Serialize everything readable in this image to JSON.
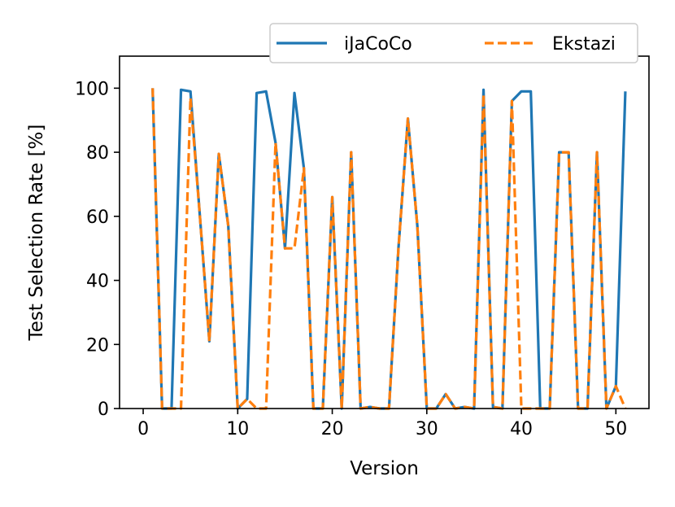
{
  "chart_data": {
    "type": "line",
    "xlabel": "Version",
    "ylabel": "Test Selection Rate [%]",
    "xlim": [
      -2.5,
      53.5
    ],
    "ylim": [
      0,
      110
    ],
    "xticks": [
      0,
      10,
      20,
      30,
      40,
      50
    ],
    "yticks": [
      0,
      20,
      40,
      60,
      80,
      100
    ],
    "grid": false,
    "legend_position": "top-right, above plot",
    "x": [
      1,
      2,
      3,
      4,
      5,
      6,
      7,
      8,
      9,
      10,
      11,
      12,
      13,
      14,
      15,
      16,
      17,
      18,
      19,
      20,
      21,
      22,
      23,
      24,
      25,
      26,
      27,
      28,
      29,
      30,
      31,
      32,
      33,
      34,
      35,
      36,
      37,
      38,
      39,
      40,
      41,
      42,
      43,
      44,
      45,
      46,
      47,
      48,
      49,
      50,
      51
    ],
    "series": [
      {
        "name": "iJaCoCo",
        "color": "#1f77b4",
        "style": "solid",
        "values": [
          100,
          0,
          0,
          99.5,
          99,
          60,
          21,
          79.5,
          57,
          0,
          3,
          98.5,
          99,
          83,
          50,
          98.5,
          75,
          0,
          0,
          66,
          0,
          80,
          0,
          0.5,
          0,
          0,
          50,
          90.5,
          57,
          0,
          0,
          4.5,
          0,
          0.5,
          0,
          99.5,
          0.5,
          0,
          96,
          99,
          99,
          0,
          0,
          80,
          80,
          0,
          0,
          80,
          0,
          7,
          99
        ]
      },
      {
        "name": "Ekstazi",
        "color": "#ff7f0e",
        "style": "dashed",
        "values": [
          100,
          0,
          0,
          0,
          97,
          60,
          21,
          79.5,
          57,
          0,
          3,
          0,
          0,
          83,
          50,
          50,
          75,
          0,
          0,
          66,
          0,
          80,
          0,
          0.5,
          0,
          0,
          50,
          90.5,
          57,
          0,
          0,
          4.5,
          0,
          0.5,
          0,
          98,
          0.5,
          0,
          96,
          0,
          0,
          0,
          0,
          80,
          80,
          0,
          0,
          80,
          0,
          7,
          0
        ]
      }
    ]
  }
}
